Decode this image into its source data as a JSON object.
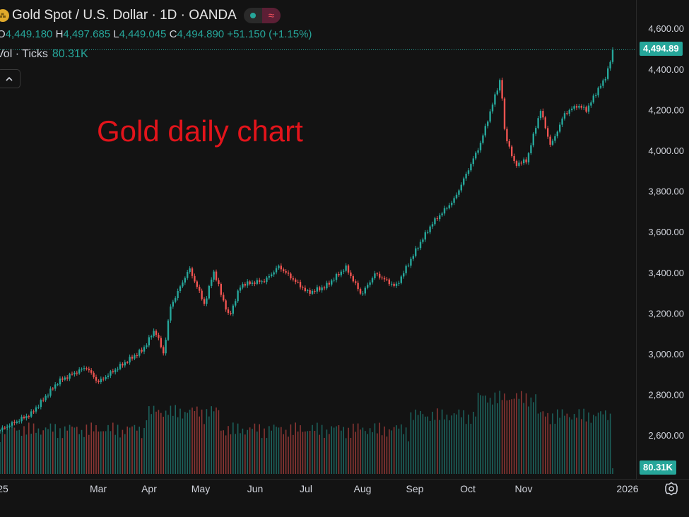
{
  "header": {
    "title": "Gold Spot / U.S. Dollar · 1D · OANDA",
    "ohlc": [
      {
        "key": "O",
        "value": "4,449.180"
      },
      {
        "key": "H",
        "value": "4,497.685"
      },
      {
        "key": "L",
        "value": "4,449.045"
      },
      {
        "key": "C",
        "value": "4,494.890"
      }
    ],
    "change": "+51.150 (+1.15%)",
    "volume_label": "Vol · Ticks",
    "volume_value": "80.31K"
  },
  "annotation": "Gold daily chart",
  "badges": {
    "price": "4,494.89",
    "volume": "80.31K"
  },
  "colors": {
    "up": "#26a69a",
    "down": "#ef5350",
    "background": "#131313",
    "annotation": "#e3141b"
  },
  "icons": {
    "symbol": "gold-bars-icon",
    "collapse": "chevron-up-icon",
    "settings": "gear-icon"
  },
  "chart_data": {
    "type": "candlestick",
    "title": "Gold Spot / U.S. Dollar",
    "interval": "1D",
    "y_axis": {
      "ticks": [
        2600,
        2800,
        3000,
        3200,
        3400,
        3600,
        3800,
        4000,
        4200,
        4400,
        4600
      ],
      "tick_labels": [
        "2,600.00",
        "2,800.00",
        "3,000.00",
        "3,200.00",
        "3,400.00",
        "3,600.00",
        "3,800.00",
        "4,000.00",
        "4,200.00",
        "4,400.00",
        "4,600.00"
      ],
      "range": [
        2560,
        4640
      ]
    },
    "x_axis": {
      "tick_labels": [
        "25",
        "Mar",
        "Apr",
        "May",
        "Jun",
        "Jul",
        "Aug",
        "Sep",
        "Oct",
        "Nov",
        "2026"
      ]
    },
    "last_close": 4494.89,
    "close_path": [
      {
        "date": "2025-01-02",
        "close": 2625
      },
      {
        "date": "2025-01-20",
        "close": 2705
      },
      {
        "date": "2025-02-05",
        "close": 2865
      },
      {
        "date": "2025-02-21",
        "close": 2935
      },
      {
        "date": "2025-02-28",
        "close": 2860
      },
      {
        "date": "2025-03-12",
        "close": 2935
      },
      {
        "date": "2025-03-26",
        "close": 3020
      },
      {
        "date": "2025-04-02",
        "close": 3120
      },
      {
        "date": "2025-04-07",
        "close": 3000
      },
      {
        "date": "2025-04-11",
        "close": 3230
      },
      {
        "date": "2025-04-22",
        "close": 3420
      },
      {
        "date": "2025-05-01",
        "close": 3240
      },
      {
        "date": "2025-05-06",
        "close": 3410
      },
      {
        "date": "2025-05-15",
        "close": 3180
      },
      {
        "date": "2025-05-22",
        "close": 3340
      },
      {
        "date": "2025-06-05",
        "close": 3360
      },
      {
        "date": "2025-06-13",
        "close": 3430
      },
      {
        "date": "2025-06-30",
        "close": 3300
      },
      {
        "date": "2025-07-10",
        "close": 3330
      },
      {
        "date": "2025-07-22",
        "close": 3425
      },
      {
        "date": "2025-07-31",
        "close": 3290
      },
      {
        "date": "2025-08-08",
        "close": 3395
      },
      {
        "date": "2025-08-20",
        "close": 3330
      },
      {
        "date": "2025-09-02",
        "close": 3530
      },
      {
        "date": "2025-09-10",
        "close": 3640
      },
      {
        "date": "2025-09-23",
        "close": 3760
      },
      {
        "date": "2025-10-08",
        "close": 4030
      },
      {
        "date": "2025-10-20",
        "close": 4360
      },
      {
        "date": "2025-10-22",
        "close": 4100
      },
      {
        "date": "2025-10-28",
        "close": 3930
      },
      {
        "date": "2025-11-04",
        "close": 3950
      },
      {
        "date": "2025-11-12",
        "close": 4200
      },
      {
        "date": "2025-11-18",
        "close": 4020
      },
      {
        "date": "2025-11-26",
        "close": 4180
      },
      {
        "date": "2025-12-03",
        "close": 4220
      },
      {
        "date": "2025-12-09",
        "close": 4200
      },
      {
        "date": "2025-12-16",
        "close": 4310
      },
      {
        "date": "2025-12-19",
        "close": 4340
      },
      {
        "date": "2025-12-23",
        "close": 4449
      },
      {
        "date": "2025-12-24",
        "close": 4495
      }
    ],
    "volume": {
      "unit": "ticks",
      "last": "80.31K"
    }
  }
}
